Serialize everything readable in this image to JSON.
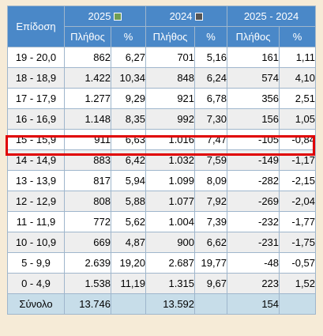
{
  "table": {
    "header": {
      "group_label": "Επίδοση",
      "years": [
        {
          "label": "2025",
          "swatch_color": "#6f9d53",
          "swatch_icon": "square-icon"
        },
        {
          "label": "2024",
          "swatch_color": "#555555",
          "swatch_icon": "square-icon"
        },
        {
          "label": "2025 - 2024"
        }
      ],
      "sub": [
        "Πλήθος",
        "%",
        "Πλήθος",
        "%",
        "Πλήθος",
        "%"
      ]
    },
    "rows": [
      {
        "range": "19 - 20,0",
        "c2025": "862",
        "p2025": "6,27",
        "c2024": "701",
        "p2024": "5,16",
        "cdiff": "161",
        "pdiff": "1,11"
      },
      {
        "range": "18 - 18,9",
        "c2025": "1.422",
        "p2025": "10,34",
        "c2024": "848",
        "p2024": "6,24",
        "cdiff": "574",
        "pdiff": "4,10"
      },
      {
        "range": "17 - 17,9",
        "c2025": "1.277",
        "p2025": "9,29",
        "c2024": "921",
        "p2024": "6,78",
        "cdiff": "356",
        "pdiff": "2,51"
      },
      {
        "range": "16 - 16,9",
        "c2025": "1.148",
        "p2025": "8,35",
        "c2024": "992",
        "p2024": "7,30",
        "cdiff": "156",
        "pdiff": "1,05"
      },
      {
        "range": "15 - 15,9",
        "c2025": "911",
        "p2025": "6,63",
        "c2024": "1.016",
        "p2024": "7,47",
        "cdiff": "-105",
        "pdiff": "-0,84"
      },
      {
        "range": "14 - 14,9",
        "c2025": "883",
        "p2025": "6,42",
        "c2024": "1.032",
        "p2024": "7,59",
        "cdiff": "-149",
        "pdiff": "-1,17"
      },
      {
        "range": "13 - 13,9",
        "c2025": "817",
        "p2025": "5,94",
        "c2024": "1.099",
        "p2024": "8,09",
        "cdiff": "-282",
        "pdiff": "-2,15"
      },
      {
        "range": "12 - 12,9",
        "c2025": "808",
        "p2025": "5,88",
        "c2024": "1.077",
        "p2024": "7,92",
        "cdiff": "-269",
        "pdiff": "-2,04"
      },
      {
        "range": "11 - 11,9",
        "c2025": "772",
        "p2025": "5,62",
        "c2024": "1.004",
        "p2024": "7,39",
        "cdiff": "-232",
        "pdiff": "-1,77"
      },
      {
        "range": "10 - 10,9",
        "c2025": "669",
        "p2025": "4,87",
        "c2024": "900",
        "p2024": "6,62",
        "cdiff": "-231",
        "pdiff": "-1,75"
      },
      {
        "range": "5 - 9,9",
        "c2025": "2.639",
        "p2025": "19,20",
        "c2024": "2.687",
        "p2024": "19,77",
        "cdiff": "-48",
        "pdiff": "-0,57"
      },
      {
        "range": "0 - 4,9",
        "c2025": "1.538",
        "p2025": "11,19",
        "c2024": "1.315",
        "p2024": "9,67",
        "cdiff": "223",
        "pdiff": "1,52"
      }
    ],
    "total": {
      "label": "Σύνολο",
      "c2025": "13.746",
      "p2025": "",
      "c2024": "13.592",
      "p2024": "",
      "cdiff": "154",
      "pdiff": ""
    },
    "highlighted_row": "15 - 15,9",
    "colors": {
      "header_bg": "#4a88c8",
      "highlight_border": "#e00000",
      "total_bg": "#c7dde9",
      "page_bg": "#f6ebd7"
    }
  }
}
